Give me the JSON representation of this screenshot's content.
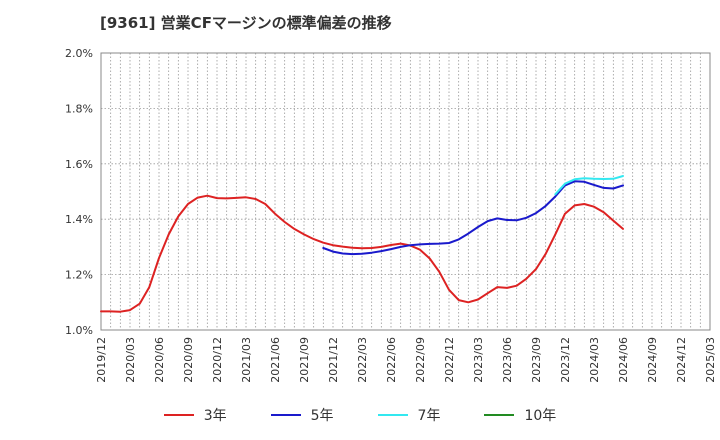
{
  "chart_data": {
    "type": "line",
    "title": "[9361]  営業CFマージンの標準偏差の推移",
    "y_tick_labels": [
      "1.0%",
      "1.2%",
      "1.4%",
      "1.6%",
      "1.8%",
      "2.0%"
    ],
    "ylim": [
      1.0,
      2.0
    ],
    "y_ticks": [
      1.0,
      1.2,
      1.4,
      1.6,
      1.8,
      2.0
    ],
    "x_tick_labels": [
      "2019/12",
      "2020/03",
      "2020/06",
      "2020/09",
      "2020/12",
      "2021/03",
      "2021/06",
      "2021/09",
      "2021/12",
      "2022/03",
      "2022/06",
      "2022/09",
      "2022/12",
      "2023/03",
      "2023/06",
      "2023/09",
      "2023/12",
      "2024/03",
      "2024/06",
      "2024/09",
      "2024/12",
      "2025/03"
    ],
    "x_range": [
      "2019-12",
      "2025-03"
    ],
    "grid": true,
    "legend_position": "bottom",
    "series": [
      {
        "name": "3年",
        "color": "#dd2222",
        "points": [
          [
            "2019-12",
            1.067
          ],
          [
            "2020-01",
            1.067
          ],
          [
            "2020-02",
            1.066
          ],
          [
            "2020-03",
            1.072
          ],
          [
            "2020-04",
            1.095
          ],
          [
            "2020-05",
            1.155
          ],
          [
            "2020-06",
            1.26
          ],
          [
            "2020-07",
            1.345
          ],
          [
            "2020-08",
            1.41
          ],
          [
            "2020-09",
            1.455
          ],
          [
            "2020-10",
            1.478
          ],
          [
            "2020-11",
            1.485
          ],
          [
            "2020-12",
            1.476
          ],
          [
            "2021-01",
            1.475
          ],
          [
            "2021-02",
            1.477
          ],
          [
            "2021-03",
            1.479
          ],
          [
            "2021-04",
            1.473
          ],
          [
            "2021-05",
            1.455
          ],
          [
            "2021-06",
            1.42
          ],
          [
            "2021-07",
            1.39
          ],
          [
            "2021-08",
            1.365
          ],
          [
            "2021-09",
            1.345
          ],
          [
            "2021-10",
            1.328
          ],
          [
            "2021-11",
            1.315
          ],
          [
            "2021-12",
            1.306
          ],
          [
            "2022-01",
            1.301
          ],
          [
            "2022-02",
            1.297
          ],
          [
            "2022-03",
            1.295
          ],
          [
            "2022-04",
            1.296
          ],
          [
            "2022-05",
            1.3
          ],
          [
            "2022-06",
            1.307
          ],
          [
            "2022-07",
            1.312
          ],
          [
            "2022-08",
            1.305
          ],
          [
            "2022-09",
            1.29
          ],
          [
            "2022-10",
            1.258
          ],
          [
            "2022-11",
            1.21
          ],
          [
            "2022-12",
            1.145
          ],
          [
            "2023-01",
            1.108
          ],
          [
            "2023-02",
            1.1
          ],
          [
            "2023-03",
            1.11
          ],
          [
            "2023-04",
            1.133
          ],
          [
            "2023-05",
            1.155
          ],
          [
            "2023-06",
            1.152
          ],
          [
            "2023-07",
            1.16
          ],
          [
            "2023-08",
            1.185
          ],
          [
            "2023-09",
            1.22
          ],
          [
            "2023-10",
            1.275
          ],
          [
            "2023-11",
            1.345
          ],
          [
            "2023-12",
            1.42
          ],
          [
            "2024-01",
            1.45
          ],
          [
            "2024-02",
            1.455
          ],
          [
            "2024-03",
            1.445
          ],
          [
            "2024-04",
            1.425
          ],
          [
            "2024-05",
            1.395
          ],
          [
            "2024-06",
            1.365
          ]
        ]
      },
      {
        "name": "5年",
        "color": "#1a1acc",
        "points": [
          [
            "2021-11",
            1.296
          ],
          [
            "2021-12",
            1.283
          ],
          [
            "2022-01",
            1.276
          ],
          [
            "2022-02",
            1.274
          ],
          [
            "2022-03",
            1.275
          ],
          [
            "2022-04",
            1.279
          ],
          [
            "2022-05",
            1.285
          ],
          [
            "2022-06",
            1.292
          ],
          [
            "2022-07",
            1.3
          ],
          [
            "2022-08",
            1.306
          ],
          [
            "2022-09",
            1.309
          ],
          [
            "2022-10",
            1.311
          ],
          [
            "2022-11",
            1.312
          ],
          [
            "2022-12",
            1.314
          ],
          [
            "2023-01",
            1.327
          ],
          [
            "2023-02",
            1.348
          ],
          [
            "2023-03",
            1.372
          ],
          [
            "2023-04",
            1.393
          ],
          [
            "2023-05",
            1.403
          ],
          [
            "2023-06",
            1.397
          ],
          [
            "2023-07",
            1.396
          ],
          [
            "2023-08",
            1.405
          ],
          [
            "2023-09",
            1.422
          ],
          [
            "2023-10",
            1.448
          ],
          [
            "2023-11",
            1.482
          ],
          [
            "2023-12",
            1.522
          ],
          [
            "2024-01",
            1.537
          ],
          [
            "2024-02",
            1.535
          ],
          [
            "2024-03",
            1.524
          ],
          [
            "2024-04",
            1.513
          ],
          [
            "2024-05",
            1.511
          ],
          [
            "2024-06",
            1.522
          ]
        ]
      },
      {
        "name": "7年",
        "color": "#33e8f0",
        "points": [
          [
            "2023-11",
            1.49
          ],
          [
            "2023-12",
            1.528
          ],
          [
            "2024-01",
            1.544
          ],
          [
            "2024-02",
            1.548
          ],
          [
            "2024-03",
            1.546
          ],
          [
            "2024-04",
            1.545
          ],
          [
            "2024-05",
            1.546
          ],
          [
            "2024-06",
            1.556
          ]
        ]
      },
      {
        "name": "10年",
        "color": "#228b22",
        "points": []
      }
    ]
  }
}
